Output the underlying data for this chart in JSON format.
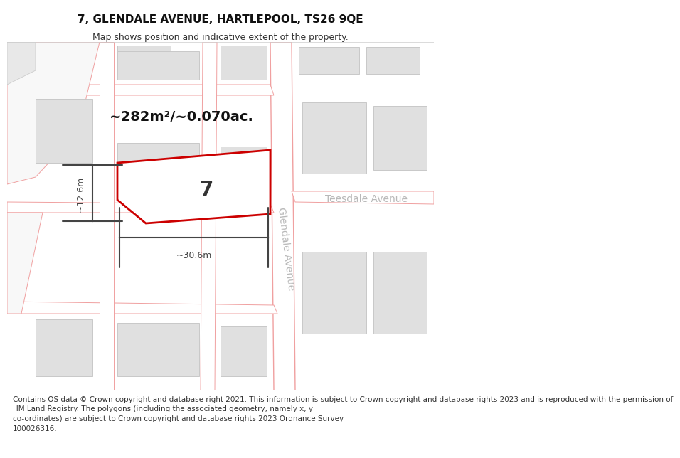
{
  "title": "7, GLENDALE AVENUE, HARTLEPOOL, TS26 9QE",
  "subtitle": "Map shows position and indicative extent of the property.",
  "copyright": "Contains OS data © Crown copyright and database right 2021. This information is subject to Crown copyright and database rights 2023 and is reproduced with the permission of\nHM Land Registry. The polygons (including the associated geometry, namely x, y\nco-ordinates) are subject to Crown copyright and database rights 2023 Ordnance Survey\n100026316.",
  "area_label": "~282m²/~0.070ac.",
  "dim_width": "~30.6m",
  "dim_height": "~12.6m",
  "number_label": "7",
  "road_label_diagonal": "Glendale Avenue",
  "road_label_horizontal": "Teesdale Avenue",
  "bg_color": "#ffffff",
  "map_bg": "#ffffff",
  "road_line_color": "#f0a0a0",
  "building_fill_color": "#e0e0e0",
  "building_edge_color": "#c8c8c8",
  "property_outline_color": "#cc0000",
  "dim_color": "#444444",
  "street_label_color": "#b8b8b8",
  "title_fontsize": 11,
  "subtitle_fontsize": 9,
  "copyright_fontsize": 7.5,
  "area_fontsize": 14,
  "num_fontsize": 20,
  "dim_fontsize": 9,
  "street_fontsize": 10
}
